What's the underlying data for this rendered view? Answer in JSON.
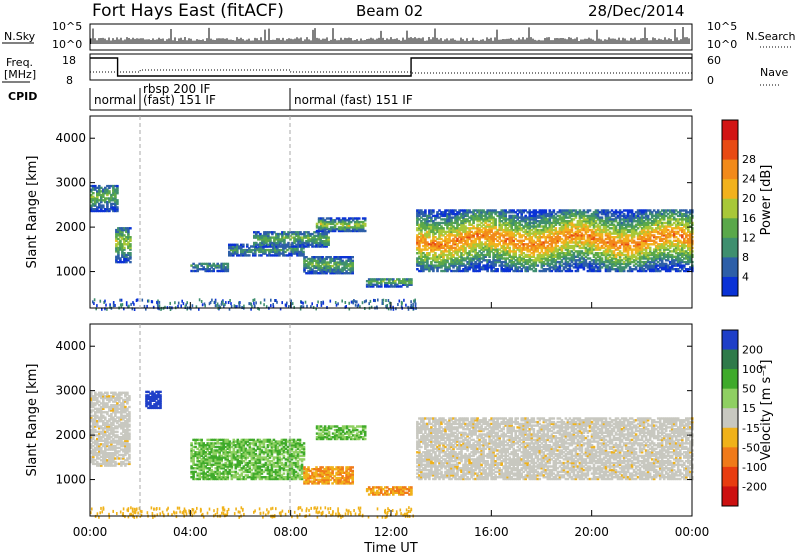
{
  "header": {
    "station": "Fort Hays East (fitACF)",
    "beam": "Beam 02",
    "date": "28/Dec/2014"
  },
  "strips": {
    "nsky_label": "N.Sky",
    "nsearch_label": "N.Search",
    "nsky_ticks": [
      "10^5",
      "10^0"
    ],
    "nsearch_ticks": [
      "10^5",
      "10^0"
    ],
    "freq_label": "Freq.",
    "freq_unit": "[MHz]",
    "freq_ticks": [
      "18",
      "8"
    ],
    "nave_label": "Nave",
    "nave_ticks": [
      "60",
      "0"
    ],
    "cpid_label": "CPID",
    "cpid_segments": [
      {
        "text": "normal",
        "start": 0.0
      },
      {
        "text": "rbsp 200 IF",
        "start": 2.0
      },
      {
        "text": "(fast) 151 IF",
        "start": 2.0
      },
      {
        "text": "normal (fast) 151 IF",
        "start": 8.0
      }
    ]
  },
  "colors": {
    "power": [
      "#0a32d6",
      "#2d5fa8",
      "#3f8f6f",
      "#5aa84a",
      "#a8c838",
      "#f2b21c",
      "#f28a1a",
      "#e84a14",
      "#d21414"
    ],
    "velocity_pos": [
      "#1f3fc8",
      "#2f7a4a",
      "#3faa2a",
      "#8fd062"
    ],
    "velocity_neg": [
      "#f0b21a",
      "#f07a1a",
      "#e83c10",
      "#cc1010"
    ],
    "gray": "#c8c8c0",
    "ground": "#9a9a9a"
  },
  "power_scale": {
    "label": "Power [dB]",
    "ticks": [
      "4",
      "8",
      "12",
      "16",
      "20",
      "24",
      "28"
    ]
  },
  "velocity_scale": {
    "label": "Velocity [m s⁻¹]",
    "ticks": [
      "200",
      "100",
      "50",
      "15",
      "-15",
      "-50",
      "-100",
      "-200"
    ]
  },
  "chart_data": [
    {
      "type": "heatmap",
      "title": "Power",
      "ylabel": "Slant Range [km]",
      "xlabel": "Time UT",
      "xlim": [
        0,
        24
      ],
      "ylim": [
        180,
        4500
      ],
      "y_ticks": [
        "1000",
        "2000",
        "3000",
        "4000"
      ],
      "x_ticks": [
        "00:00",
        "04:00",
        "08:00",
        "12:00",
        "16:00",
        "20:00",
        "00:00"
      ],
      "features": [
        {
          "t0": 0.0,
          "t1": 1.1,
          "r0": 2350,
          "r1": 2950,
          "level": 3
        },
        {
          "t0": 1.0,
          "t1": 1.6,
          "r0": 1200,
          "r1": 2000,
          "level": 4
        },
        {
          "t0": 4.0,
          "t1": 5.5,
          "r0": 1000,
          "r1": 1200,
          "level": 2
        },
        {
          "t0": 5.5,
          "t1": 8.5,
          "r0": 1350,
          "r1": 1600,
          "level": 2
        },
        {
          "t0": 6.5,
          "t1": 9.5,
          "r0": 1550,
          "r1": 1900,
          "level": 3
        },
        {
          "t0": 8.5,
          "t1": 10.5,
          "r0": 950,
          "r1": 1350,
          "level": 3
        },
        {
          "t0": 9.0,
          "t1": 11.0,
          "r0": 1900,
          "r1": 2200,
          "level": 4
        },
        {
          "t0": 11.0,
          "t1": 12.8,
          "r0": 650,
          "r1": 850,
          "level": 3
        },
        {
          "t0": 13.0,
          "t1": 24.0,
          "r0": 1000,
          "r1": 2400,
          "level": 6
        }
      ]
    },
    {
      "type": "heatmap",
      "title": "Velocity",
      "ylabel": "Slant Range [km]",
      "xlabel": "Time UT",
      "xlim": [
        0,
        24
      ],
      "ylim": [
        180,
        4500
      ],
      "y_ticks": [
        "1000",
        "2000",
        "3000",
        "4000"
      ],
      "x_ticks": [
        "00:00",
        "04:00",
        "08:00",
        "12:00",
        "16:00",
        "20:00",
        "00:00"
      ],
      "features": [
        {
          "t0": 0.0,
          "t1": 1.6,
          "r0": 1300,
          "r1": 2950,
          "kind": "gray"
        },
        {
          "t0": 2.2,
          "t1": 2.8,
          "r0": 2600,
          "r1": 3000,
          "kind": "pos_high"
        },
        {
          "t0": 4.0,
          "t1": 8.5,
          "r0": 1000,
          "r1": 1900,
          "kind": "pos_low"
        },
        {
          "t0": 8.5,
          "t1": 10.5,
          "r0": 900,
          "r1": 1300,
          "kind": "neg_low"
        },
        {
          "t0": 9.0,
          "t1": 11.0,
          "r0": 1900,
          "r1": 2200,
          "kind": "pos_low"
        },
        {
          "t0": 11.0,
          "t1": 12.8,
          "r0": 650,
          "r1": 850,
          "kind": "neg_low"
        },
        {
          "t0": 13.0,
          "t1": 24.0,
          "r0": 1000,
          "r1": 2400,
          "kind": "gray"
        }
      ]
    }
  ]
}
